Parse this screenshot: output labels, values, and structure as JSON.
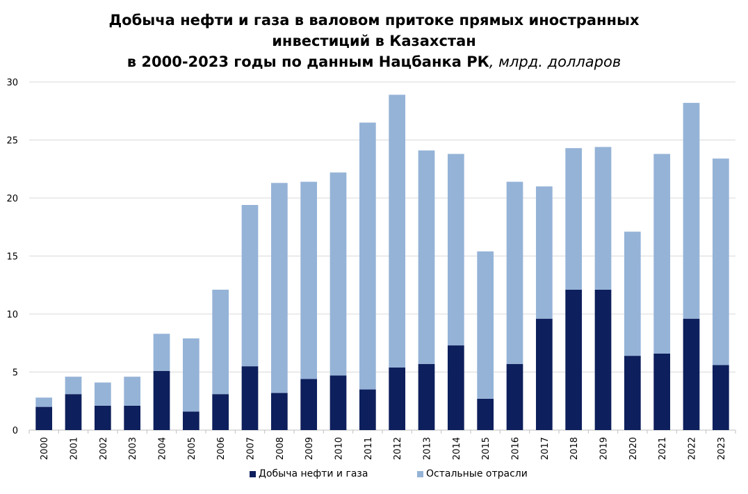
{
  "title": {
    "line1": "Добыча нефти и газа в валовом притоке прямых иностранных",
    "line2": "инвестиций в Казахстан",
    "line3_main": "в 2000-2023 годы по данным Нацбанка РК",
    "line3_unit": ", млрд. долларов"
  },
  "colors": {
    "oil_gas": "#0d1f5c",
    "other": "#95b3d7",
    "grid": "#d9d9d9",
    "axis": "#bfbfbf"
  },
  "chart_data": {
    "type": "bar",
    "stacked": true,
    "title": "Добыча нефти и газа в валовом притоке прямых иностранных инвестиций в Казахстан в 2000-2023 годы по данным Нацбанка РК, млрд. долларов",
    "categories": [
      "2000",
      "2001",
      "2002",
      "2003",
      "2004",
      "2005",
      "2006",
      "2007",
      "2008",
      "2009",
      "2010",
      "2011",
      "2012",
      "2013",
      "2014",
      "2015",
      "2016",
      "2017",
      "2018",
      "2019",
      "2020",
      "2021",
      "2022",
      "2023"
    ],
    "series": [
      {
        "name": "Добыча нефти и газа",
        "values": [
          2.0,
          3.1,
          2.1,
          2.1,
          5.1,
          1.6,
          3.1,
          5.5,
          3.2,
          4.4,
          4.7,
          3.5,
          5.4,
          5.7,
          7.3,
          2.7,
          5.7,
          9.6,
          12.1,
          12.1,
          6.4,
          6.6,
          9.6,
          5.6
        ]
      },
      {
        "name": "Остальные отрасли",
        "values": [
          0.8,
          1.5,
          2.0,
          2.5,
          3.2,
          6.3,
          9.0,
          13.9,
          18.1,
          17.0,
          17.5,
          23.0,
          23.5,
          18.4,
          16.5,
          12.7,
          15.7,
          11.4,
          12.2,
          12.3,
          10.7,
          17.2,
          18.6,
          17.8
        ]
      }
    ],
    "ylim": [
      0,
      30
    ],
    "yticks": [
      0,
      5,
      10,
      15,
      20,
      25,
      30
    ],
    "grid": true,
    "legend": "bottom"
  }
}
